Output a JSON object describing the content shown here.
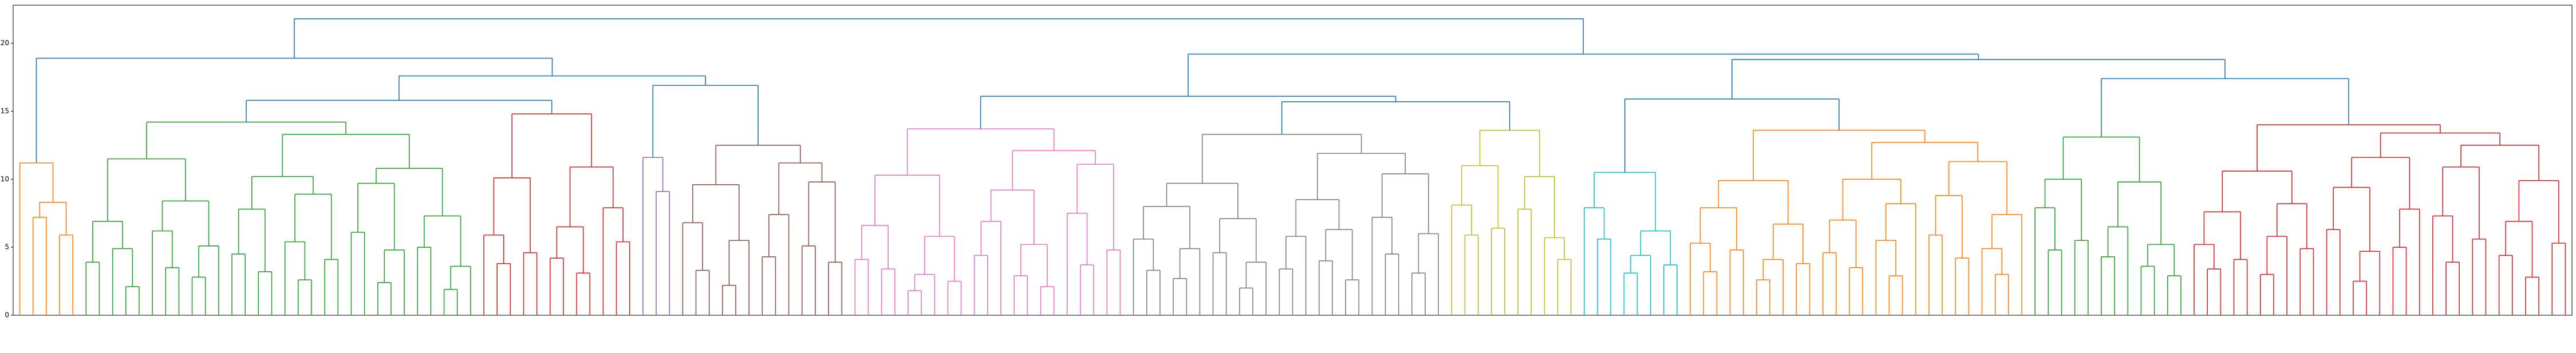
{
  "chart_data": {
    "type": "dendrogram",
    "ylim": [
      0,
      22.8
    ],
    "yticks": [
      0,
      5,
      10,
      15,
      20
    ],
    "link_color": "#1f77b4",
    "tree": [
      21.8,
      [
        18.9,
        {
          "color": "#ff7f0e",
          "tree": [
            11.2,
            null,
            [
              8.3,
              [
                7.2,
                null,
                null
              ],
              [
                5.9,
                null,
                null
              ]
            ]
          ]
        },
        [
          17.6,
          [
            15.8,
            {
              "color": "#2ca02c",
              "tree": [
                14.2,
                [
                  11.5,
                  [
                    6.9,
                    [
                      3.9,
                      null,
                      null
                    ],
                    [
                      4.9,
                      null,
                      [
                        2.1,
                        null,
                        null
                      ]
                    ]
                  ],
                  [
                    8.4,
                    [
                      6.2,
                      null,
                      [
                        3.5,
                        null,
                        null
                      ]
                    ],
                    [
                      5.1,
                      [
                        2.8,
                        null,
                        null
                      ],
                      null
                    ]
                  ]
                ],
                [
                  13.3,
                  [
                    10.2,
                    [
                      7.8,
                      [
                        4.5,
                        null,
                        null
                      ],
                      [
                        3.2,
                        null,
                        null
                      ]
                    ],
                    [
                      8.9,
                      [
                        5.4,
                        null,
                        [
                          2.6,
                          null,
                          null
                        ]
                      ],
                      [
                        4.1,
                        null,
                        null
                      ]
                    ]
                  ],
                  [
                    10.8,
                    [
                      9.7,
                      [
                        6.1,
                        null,
                        null
                      ],
                      [
                        4.8,
                        [
                          2.4,
                          null,
                          null
                        ],
                        null
                      ]
                    ],
                    [
                      7.3,
                      [
                        5.0,
                        null,
                        null
                      ],
                      [
                        3.6,
                        [
                          1.9,
                          null,
                          null
                        ],
                        null
                      ]
                    ]
                  ]
                ]
              ]
            },
            {
              "color": "#d62728",
              "tree": [
                14.8,
                [
                  10.1,
                  [
                    5.9,
                    null,
                    [
                      3.8,
                      null,
                      null
                    ]
                  ],
                  [
                    4.6,
                    null,
                    null
                  ]
                ],
                [
                  10.9,
                  [
                    6.5,
                    [
                      4.2,
                      null,
                      null
                    ],
                    [
                      3.1,
                      null,
                      null
                    ]
                  ],
                  [
                    7.9,
                    null,
                    [
                      5.4,
                      null,
                      null
                    ]
                  ]
                ]
              ]
            }
          ],
          [
            16.9,
            {
              "color": "#9467bd",
              "tree": [
                11.6,
                null,
                [
                  9.1,
                  null,
                  null
                ]
              ]
            },
            {
              "color": "#8c564b",
              "tree": [
                12.5,
                [
                  9.6,
                  [
                    6.8,
                    null,
                    [
                      3.3,
                      null,
                      null
                    ]
                  ],
                  [
                    5.5,
                    [
                      2.2,
                      null,
                      null
                    ],
                    null
                  ]
                ],
                [
                  11.2,
                  [
                    7.4,
                    [
                      4.3,
                      null,
                      null
                    ],
                    null
                  ],
                  [
                    9.8,
                    [
                      5.1,
                      null,
                      null
                    ],
                    [
                      3.9,
                      null,
                      null
                    ]
                  ]
                ]
              ]
            }
          ]
        ]
      ],
      [
        19.2,
        [
          16.1,
          {
            "color": "#e377c2",
            "tree": [
              13.7,
              [
                10.3,
                [
                  6.6,
                  [
                    4.1,
                    null,
                    null
                  ],
                  [
                    3.4,
                    null,
                    null
                  ]
                ],
                [
                  5.8,
                  [
                    3.0,
                    [
                      1.8,
                      null,
                      null
                    ],
                    null
                  ],
                  [
                    2.5,
                    null,
                    null
                  ]
                ]
              ],
              [
                12.1,
                [
                  9.2,
                  [
                    6.9,
                    [
                      4.4,
                      null,
                      null
                    ],
                    null
                  ],
                  [
                    5.2,
                    [
                      2.9,
                      null,
                      null
                    ],
                    [
                      2.1,
                      null,
                      null
                    ]
                  ]
                ],
                [
                  11.1,
                  [
                    7.5,
                    null,
                    [
                      3.7,
                      null,
                      null
                    ]
                  ],
                  [
                    4.8,
                    null,
                    null
                  ]
                ]
              ]
            ]
          },
          [
            15.7,
            {
              "color": "#7f7f7f",
              "tree": [
                13.3,
                [
                  9.7,
                  [
                    8.0,
                    [
                      5.6,
                      null,
                      [
                        3.3,
                        null,
                        null
                      ]
                    ],
                    [
                      4.9,
                      [
                        2.7,
                        null,
                        null
                      ],
                      null
                    ]
                  ],
                  [
                    7.1,
                    [
                      4.6,
                      null,
                      null
                    ],
                    [
                      3.9,
                      [
                        2.0,
                        null,
                        null
                      ],
                      null
                    ]
                  ]
                ],
                [
                  11.9,
                  [
                    8.5,
                    [
                      5.8,
                      [
                        3.4,
                        null,
                        null
                      ],
                      null
                    ],
                    [
                      6.3,
                      [
                        4.0,
                        null,
                        null
                      ],
                      [
                        2.6,
                        null,
                        null
                      ]
                    ]
                  ],
                  [
                    10.4,
                    [
                      7.2,
                      null,
                      [
                        4.5,
                        null,
                        null
                      ]
                    ],
                    [
                      6.0,
                      [
                        3.1,
                        null,
                        null
                      ],
                      null
                    ]
                  ]
                ]
              ]
            },
            {
              "color": "#bcbd22",
              "tree": [
                13.6,
                [
                  11.0,
                  [
                    8.1,
                    null,
                    [
                      5.9,
                      null,
                      null
                    ]
                  ],
                  [
                    6.4,
                    null,
                    null
                  ]
                ],
                [
                  10.2,
                  [
                    7.8,
                    null,
                    null
                  ],
                  [
                    5.7,
                    null,
                    [
                      4.1,
                      null,
                      null
                    ]
                  ]
                ]
              ]
            }
          ]
        ],
        [
          18.8,
          [
            15.9,
            {
              "color": "#17becf",
              "tree": [
                10.5,
                [
                  7.9,
                  null,
                  [
                    5.6,
                    null,
                    null
                  ]
                ],
                [
                  6.2,
                  [
                    4.4,
                    [
                      3.1,
                      null,
                      null
                    ],
                    null
                  ],
                  [
                    3.7,
                    null,
                    null
                  ]
                ]
              ]
            },
            {
              "color": "#ff7f0e",
              "tree": [
                13.6,
                [
                  9.9,
                  [
                    7.9,
                    [
                      5.3,
                      null,
                      [
                        3.2,
                        null,
                        null
                      ]
                    ],
                    [
                      4.8,
                      null,
                      null
                    ]
                  ],
                  [
                    6.7,
                    [
                      4.1,
                      [
                        2.6,
                        null,
                        null
                      ],
                      null
                    ],
                    [
                      3.8,
                      null,
                      null
                    ]
                  ]
                ],
                [
                  12.7,
                  [
                    10.0,
                    [
                      7.0,
                      [
                        4.6,
                        null,
                        null
                      ],
                      [
                        3.5,
                        null,
                        null
                      ]
                    ],
                    [
                      8.2,
                      [
                        5.5,
                        null,
                        [
                          2.9,
                          null,
                          null
                        ]
                      ],
                      null
                    ]
                  ],
                  [
                    11.3,
                    [
                      8.8,
                      [
                        5.9,
                        null,
                        null
                      ],
                      [
                        4.2,
                        null,
                        null
                      ]
                    ],
                    [
                      7.4,
                      [
                        4.9,
                        null,
                        [
                          3.0,
                          null,
                          null
                        ]
                      ],
                      null
                    ]
                  ]
                ]
              ]
            }
          ],
          [
            17.4,
            {
              "color": "#2ca02c",
              "tree": [
                13.1,
                [
                  10.0,
                  [
                    7.9,
                    null,
                    [
                      4.8,
                      null,
                      null
                    ]
                  ],
                  [
                    5.5,
                    null,
                    null
                  ]
                ],
                [
                  9.8,
                  [
                    6.5,
                    [
                      4.3,
                      null,
                      null
                    ],
                    null
                  ],
                  [
                    5.2,
                    [
                      3.6,
                      null,
                      null
                    ],
                    [
                      2.9,
                      null,
                      null
                    ]
                  ]
                ]
              ]
            },
            {
              "color": "#d62728",
              "tree": [
                14.0,
                [
                  10.6,
                  [
                    7.6,
                    [
                      5.2,
                      null,
                      [
                        3.4,
                        null,
                        null
                      ]
                    ],
                    [
                      4.1,
                      null,
                      null
                    ]
                  ],
                  [
                    8.2,
                    [
                      5.8,
                      [
                        3.0,
                        null,
                        null
                      ],
                      null
                    ],
                    [
                      4.9,
                      null,
                      null
                    ]
                  ]
                ],
                [
                  13.4,
                  [
                    11.6,
                    [
                      9.4,
                      [
                        6.3,
                        null,
                        null
                      ],
                      [
                        4.7,
                        [
                          2.5,
                          null,
                          null
                        ],
                        null
                      ]
                    ],
                    [
                      7.8,
                      [
                        5.0,
                        null,
                        null
                      ],
                      null
                    ]
                  ],
                  [
                    12.5,
                    [
                      10.9,
                      [
                        7.3,
                        null,
                        [
                          3.9,
                          null,
                          null
                        ]
                      ],
                      [
                        5.6,
                        null,
                        null
                      ]
                    ],
                    [
                      9.9,
                      [
                        6.9,
                        [
                          4.4,
                          null,
                          null
                        ],
                        [
                          2.8,
                          null,
                          null
                        ]
                      ],
                      [
                        5.3,
                        null,
                        null
                      ]
                    ]
                  ]
                ]
              ]
            }
          ]
        ]
      ]
    ]
  }
}
